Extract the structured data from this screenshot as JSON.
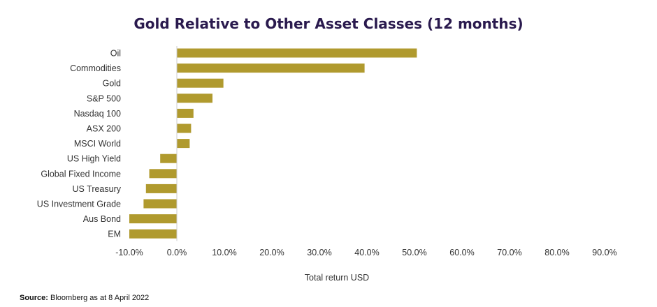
{
  "chart_data": {
    "type": "bar",
    "orientation": "horizontal",
    "title": "Gold Relative to Other Asset Classes (12 months)",
    "xlabel": "Total return USD",
    "ylabel": "",
    "xlim": [
      -10,
      90
    ],
    "ticks": [
      "-10.0%",
      "0.0%",
      "10.0%",
      "20.0%",
      "30.0%",
      "40.0%",
      "50.0%",
      "60.0%",
      "70.0%",
      "80.0%",
      "90.0%"
    ],
    "tick_values": [
      -10,
      0,
      10,
      20,
      30,
      40,
      50,
      60,
      70,
      80,
      90
    ],
    "categories": [
      "Oil",
      "Commodities",
      "Gold",
      "S&P 500",
      "Nasdaq 100",
      "ASX 200",
      "MSCI World",
      "US High Yield",
      "Global Fixed Income",
      "US Treasury",
      "US Investment Grade",
      "Aus Bond",
      "EM"
    ],
    "values": [
      50.5,
      39.5,
      9.8,
      7.5,
      3.5,
      3.0,
      2.7,
      -3.5,
      -5.8,
      -6.5,
      -7.0,
      -10.0,
      -10.0
    ],
    "bar_color": "#b09a2e",
    "grid": false,
    "legend": "none"
  },
  "source": {
    "label": "Source:",
    "text": "Bloomberg as at 8 April 2022"
  }
}
